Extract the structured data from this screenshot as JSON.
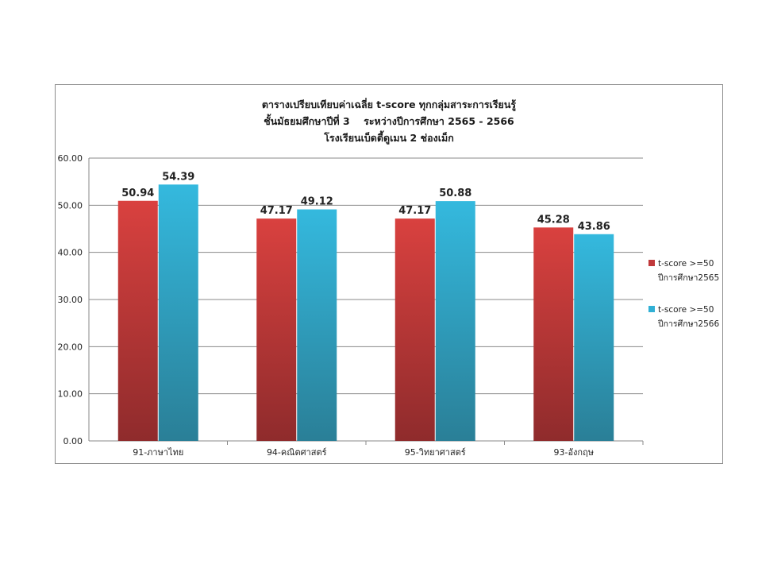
{
  "chart_data": {
    "type": "bar",
    "title_lines": [
      "ตารางเปรียบเทียบค่าเฉลี่ย t-score ทุกกลุ่มสาระการเรียนรู้",
      "ชั้นมัธยมศึกษาปีที่ 3    ระหว่างปีการศึกษา 2565 - 2566",
      "โรงเรียนเบ็ดตี้ดูเมน 2 ช่องเม็ก"
    ],
    "categories": [
      "91-ภาษาไทย",
      "94-คณิตศาสตร์",
      "95-วิทยาศาสตร์",
      "93-อังกฤษ"
    ],
    "series": [
      {
        "name_line1": "t-score >=50",
        "name_line2": "ปีการศึกษา2565",
        "values": [
          50.94,
          47.17,
          47.17,
          45.28
        ],
        "value_labels": [
          "50.94",
          "47.17",
          "47.17",
          "45.28"
        ],
        "color": "#c0393b"
      },
      {
        "name_line1": "t-score >=50",
        "name_line2": "ปีการศึกษา2566",
        "values": [
          54.39,
          49.12,
          50.88,
          43.86
        ],
        "value_labels": [
          "54.39",
          "49.12",
          "50.88",
          "43.86"
        ],
        "color": "#31b0d5"
      }
    ],
    "ylim": [
      0,
      60
    ],
    "yticks": [
      "0.00",
      "10.00",
      "20.00",
      "30.00",
      "40.00",
      "50.00",
      "60.00"
    ],
    "grid": true,
    "legend_position": "right"
  }
}
